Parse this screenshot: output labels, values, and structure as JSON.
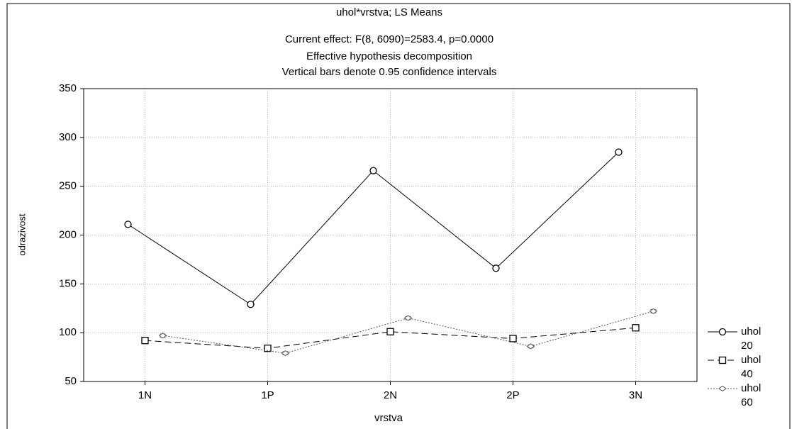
{
  "chart_data": {
    "type": "line",
    "title": "uhol*vrstva; LS Means",
    "subtitle": [
      "Current effect: F(8, 6090)=2583.4, p=0.0000",
      "Effective hypothesis decomposition",
      "Vertical bars denote 0.95 confidence intervals"
    ],
    "x_label": "vrstva",
    "y_label": "odrazivost",
    "categories": [
      "1N",
      "1P",
      "2N",
      "2P",
      "3N"
    ],
    "series": [
      {
        "name": "uhol 20",
        "color": "#000000",
        "marker": "circle",
        "dash": "solid",
        "values": [
          211,
          129,
          266,
          166,
          285
        ],
        "errors": [
          1.6,
          1.6,
          1.6,
          1.6,
          1.6
        ]
      },
      {
        "name": "uhol 40",
        "color": "#000000",
        "marker": "square",
        "dash": "dashed",
        "values": [
          92,
          84,
          101,
          94,
          105
        ],
        "errors": [
          1.6,
          1.6,
          1.6,
          1.6,
          1.6
        ]
      },
      {
        "name": "uhol 60",
        "color": "#555555",
        "marker": "diamond",
        "dash": "dotted",
        "values": [
          97,
          79,
          115,
          86,
          122
        ],
        "errors": [
          1.6,
          1.6,
          1.6,
          1.6,
          1.6
        ]
      }
    ],
    "ylim": [
      50,
      350
    ],
    "yticks": [
      50,
      100,
      150,
      200,
      250,
      300,
      350
    ],
    "grid": true,
    "legend": "right"
  }
}
